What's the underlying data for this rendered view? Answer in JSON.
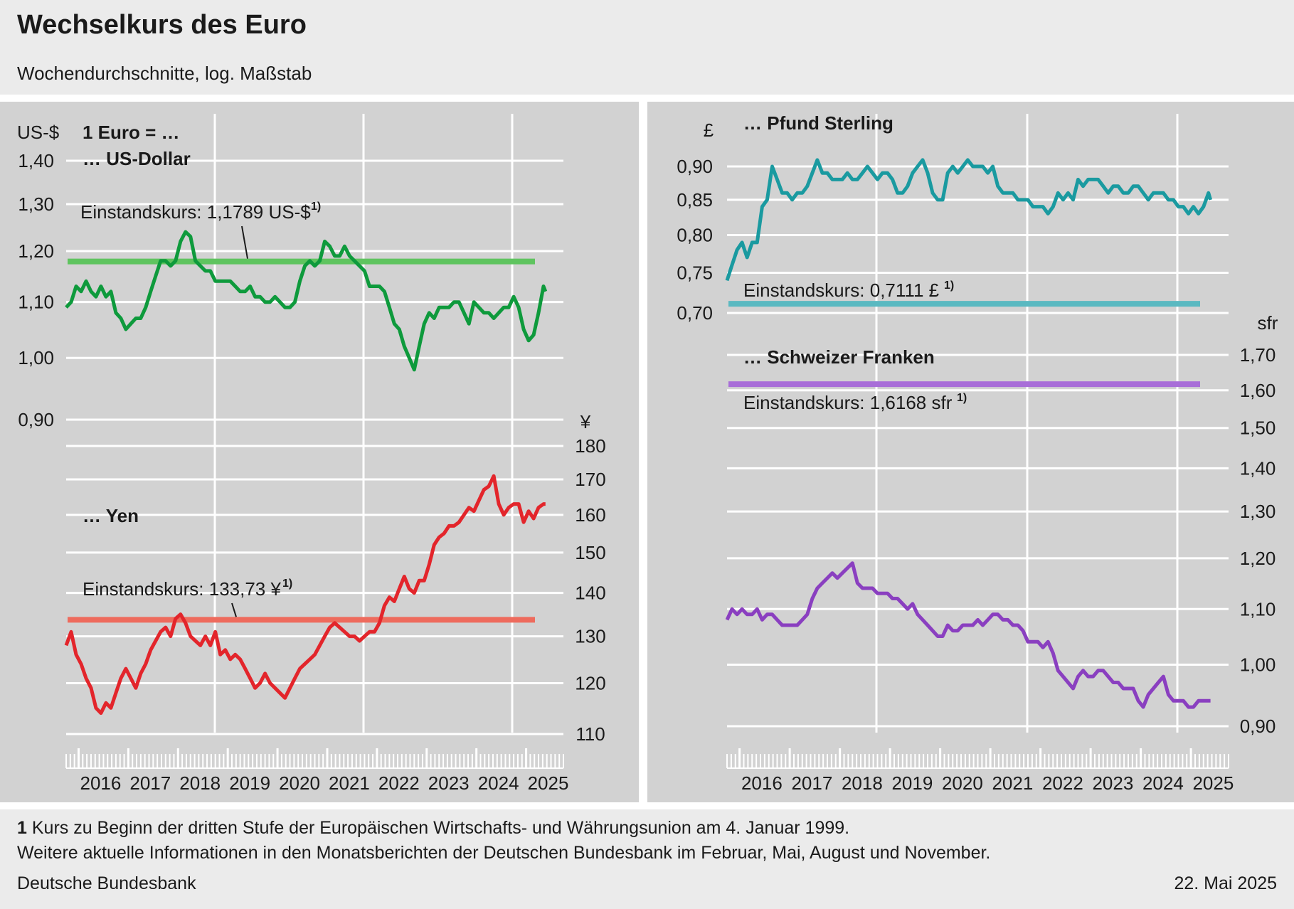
{
  "title": "Wechselkurs des Euro",
  "subtitle": "Wochendurchschnitte, log. Maßstab",
  "footnote_num": "1",
  "footnote_text": "Kurs zu Beginn der dritten Stufe der Europäischen Wirtschafts- und Währungsunion am 4. Januar 1999.",
  "footnote_text2": "Weitere aktuelle Informationen in den Monatsberichten der Deutschen Bundesbank im Februar, Mai, August und November.",
  "source": "Deutsche Bundesbank",
  "date": "22. Mai 2025",
  "header_label": "1 Euro = …",
  "years": [
    "2016",
    "2017",
    "2018",
    "2019",
    "2020",
    "2021",
    "2022",
    "2023",
    "2024",
    "2025"
  ],
  "chart_data": [
    {
      "type": "line",
      "name": "… US-Dollar",
      "unit": "US-$",
      "scale": "log",
      "yticks": [
        0.9,
        1.0,
        1.1,
        1.2,
        1.3,
        1.4
      ],
      "ytick_labels": [
        "0,90",
        "1,00",
        "1,10",
        "1,20",
        "1,30",
        "1,40"
      ],
      "color": "#0e9a3c",
      "baseline": {
        "value": 1.1789,
        "label": "Einstandskurs: 1,1789 US-$",
        "sup": "1)",
        "color": "#5fc45f"
      },
      "x": [
        2015.75,
        2015.85,
        2015.95,
        2016.05,
        2016.15,
        2016.25,
        2016.35,
        2016.45,
        2016.55,
        2016.65,
        2016.75,
        2016.85,
        2016.95,
        2017.05,
        2017.15,
        2017.25,
        2017.35,
        2017.45,
        2017.55,
        2017.65,
        2017.75,
        2017.85,
        2017.95,
        2018.05,
        2018.15,
        2018.25,
        2018.35,
        2018.45,
        2018.55,
        2018.65,
        2018.75,
        2018.85,
        2018.95,
        2019.05,
        2019.15,
        2019.25,
        2019.35,
        2019.45,
        2019.55,
        2019.65,
        2019.75,
        2019.85,
        2019.95,
        2020.05,
        2020.15,
        2020.25,
        2020.35,
        2020.45,
        2020.55,
        2020.65,
        2020.75,
        2020.85,
        2020.95,
        2021.05,
        2021.15,
        2021.25,
        2021.35,
        2021.45,
        2021.55,
        2021.65,
        2021.75,
        2021.85,
        2021.95,
        2022.05,
        2022.15,
        2022.25,
        2022.35,
        2022.45,
        2022.55,
        2022.65,
        2022.75,
        2022.85,
        2022.95,
        2023.05,
        2023.15,
        2023.25,
        2023.35,
        2023.45,
        2023.55,
        2023.65,
        2023.75,
        2023.85,
        2023.95,
        2024.05,
        2024.15,
        2024.25,
        2024.35,
        2024.45,
        2024.55,
        2024.65,
        2024.75,
        2024.85,
        2024.95,
        2025.05,
        2025.15,
        2025.25,
        2025.35,
        2025.39
      ],
      "values": [
        1.09,
        1.1,
        1.13,
        1.12,
        1.14,
        1.12,
        1.11,
        1.13,
        1.11,
        1.12,
        1.08,
        1.07,
        1.05,
        1.06,
        1.07,
        1.07,
        1.09,
        1.12,
        1.15,
        1.18,
        1.18,
        1.17,
        1.18,
        1.22,
        1.24,
        1.23,
        1.18,
        1.17,
        1.16,
        1.16,
        1.14,
        1.14,
        1.14,
        1.14,
        1.13,
        1.12,
        1.12,
        1.13,
        1.11,
        1.11,
        1.1,
        1.1,
        1.11,
        1.1,
        1.09,
        1.09,
        1.1,
        1.14,
        1.17,
        1.18,
        1.17,
        1.18,
        1.22,
        1.21,
        1.19,
        1.19,
        1.21,
        1.19,
        1.18,
        1.17,
        1.16,
        1.13,
        1.13,
        1.13,
        1.12,
        1.09,
        1.06,
        1.05,
        1.02,
        1.0,
        0.98,
        1.02,
        1.06,
        1.08,
        1.07,
        1.09,
        1.09,
        1.09,
        1.1,
        1.1,
        1.08,
        1.06,
        1.1,
        1.09,
        1.08,
        1.08,
        1.07,
        1.08,
        1.09,
        1.09,
        1.11,
        1.09,
        1.05,
        1.03,
        1.04,
        1.08,
        1.13,
        1.12
      ]
    },
    {
      "type": "line",
      "name": "… Yen",
      "unit": "¥",
      "scale": "log",
      "yticks": [
        110,
        120,
        130,
        140,
        150,
        160,
        170,
        180
      ],
      "ytick_labels": [
        "110",
        "120",
        "130",
        "140",
        "150",
        "160",
        "170",
        "180"
      ],
      "color": "#e3252b",
      "baseline": {
        "value": 133.73,
        "label": "Einstandskurs: 133,73 ¥",
        "sup": "1)",
        "color": "#ee6b5d"
      },
      "x": [
        2015.75,
        2015.85,
        2015.95,
        2016.05,
        2016.15,
        2016.25,
        2016.35,
        2016.45,
        2016.55,
        2016.65,
        2016.75,
        2016.85,
        2016.95,
        2017.05,
        2017.15,
        2017.25,
        2017.35,
        2017.45,
        2017.55,
        2017.65,
        2017.75,
        2017.85,
        2017.95,
        2018.05,
        2018.15,
        2018.25,
        2018.35,
        2018.45,
        2018.55,
        2018.65,
        2018.75,
        2018.85,
        2018.95,
        2019.05,
        2019.15,
        2019.25,
        2019.35,
        2019.45,
        2019.55,
        2019.65,
        2019.75,
        2019.85,
        2019.95,
        2020.05,
        2020.15,
        2020.25,
        2020.35,
        2020.45,
        2020.55,
        2020.65,
        2020.75,
        2020.85,
        2020.95,
        2021.05,
        2021.15,
        2021.25,
        2021.35,
        2021.45,
        2021.55,
        2021.65,
        2021.75,
        2021.85,
        2021.95,
        2022.05,
        2022.15,
        2022.25,
        2022.35,
        2022.45,
        2022.55,
        2022.65,
        2022.75,
        2022.85,
        2022.95,
        2023.05,
        2023.15,
        2023.25,
        2023.35,
        2023.45,
        2023.55,
        2023.65,
        2023.75,
        2023.85,
        2023.95,
        2024.05,
        2024.15,
        2024.25,
        2024.35,
        2024.45,
        2024.55,
        2024.65,
        2024.75,
        2024.85,
        2024.95,
        2025.05,
        2025.15,
        2025.25,
        2025.35,
        2025.39
      ],
      "values": [
        128,
        131,
        126,
        124,
        121,
        119,
        115,
        114,
        116,
        115,
        118,
        121,
        123,
        121,
        119,
        122,
        124,
        127,
        129,
        131,
        132,
        130,
        134,
        135,
        133,
        130,
        129,
        128,
        130,
        128,
        131,
        126,
        127,
        125,
        126,
        125,
        123,
        121,
        119,
        120,
        122,
        120,
        119,
        118,
        117,
        119,
        121,
        123,
        124,
        125,
        126,
        128,
        130,
        132,
        133,
        132,
        131,
        130,
        130,
        129,
        130,
        131,
        131,
        133,
        137,
        139,
        138,
        141,
        144,
        141,
        140,
        143,
        143,
        147,
        152,
        154,
        155,
        157,
        157,
        158,
        160,
        162,
        161,
        164,
        167,
        168,
        171,
        163,
        160,
        162,
        163,
        163,
        158,
        161,
        159,
        162,
        163,
        163
      ]
    },
    {
      "type": "line",
      "name": "… Pfund Sterling",
      "unit": "£",
      "scale": "log",
      "yticks": [
        0.7,
        0.75,
        0.8,
        0.85,
        0.9
      ],
      "ytick_labels": [
        "0,70",
        "0,75",
        "0,80",
        "0,85",
        "0,90"
      ],
      "color": "#1a9aa0",
      "baseline": {
        "value": 0.7111,
        "label": "Einstandskurs: 0,7111 £",
        "sup": "1)",
        "color": "#5ab9c1"
      },
      "x": [
        2015.75,
        2015.85,
        2015.95,
        2016.05,
        2016.15,
        2016.25,
        2016.35,
        2016.45,
        2016.55,
        2016.65,
        2016.75,
        2016.85,
        2016.95,
        2017.05,
        2017.15,
        2017.25,
        2017.35,
        2017.45,
        2017.55,
        2017.65,
        2017.75,
        2017.85,
        2017.95,
        2018.05,
        2018.15,
        2018.25,
        2018.35,
        2018.45,
        2018.55,
        2018.65,
        2018.75,
        2018.85,
        2018.95,
        2019.05,
        2019.15,
        2019.25,
        2019.35,
        2019.45,
        2019.55,
        2019.65,
        2019.75,
        2019.85,
        2019.95,
        2020.05,
        2020.15,
        2020.25,
        2020.35,
        2020.45,
        2020.55,
        2020.65,
        2020.75,
        2020.85,
        2020.95,
        2021.05,
        2021.15,
        2021.25,
        2021.35,
        2021.45,
        2021.55,
        2021.65,
        2021.75,
        2021.85,
        2021.95,
        2022.05,
        2022.15,
        2022.25,
        2022.35,
        2022.45,
        2022.55,
        2022.65,
        2022.75,
        2022.85,
        2022.95,
        2023.05,
        2023.15,
        2023.25,
        2023.35,
        2023.45,
        2023.55,
        2023.65,
        2023.75,
        2023.85,
        2023.95,
        2024.05,
        2024.15,
        2024.25,
        2024.35,
        2024.45,
        2024.55,
        2024.65,
        2024.75,
        2024.85,
        2024.95,
        2025.05,
        2025.15,
        2025.25,
        2025.35,
        2025.39
      ],
      "values": [
        0.74,
        0.76,
        0.78,
        0.79,
        0.77,
        0.79,
        0.79,
        0.84,
        0.85,
        0.9,
        0.88,
        0.86,
        0.86,
        0.85,
        0.86,
        0.86,
        0.87,
        0.89,
        0.91,
        0.89,
        0.89,
        0.88,
        0.88,
        0.88,
        0.89,
        0.88,
        0.88,
        0.89,
        0.9,
        0.89,
        0.88,
        0.89,
        0.89,
        0.88,
        0.86,
        0.86,
        0.87,
        0.89,
        0.9,
        0.91,
        0.89,
        0.86,
        0.85,
        0.85,
        0.89,
        0.9,
        0.89,
        0.9,
        0.91,
        0.9,
        0.9,
        0.9,
        0.89,
        0.9,
        0.87,
        0.86,
        0.86,
        0.86,
        0.85,
        0.85,
        0.85,
        0.84,
        0.84,
        0.84,
        0.83,
        0.84,
        0.86,
        0.85,
        0.86,
        0.85,
        0.88,
        0.87,
        0.88,
        0.88,
        0.88,
        0.87,
        0.86,
        0.87,
        0.87,
        0.86,
        0.86,
        0.87,
        0.87,
        0.86,
        0.85,
        0.86,
        0.86,
        0.86,
        0.85,
        0.85,
        0.84,
        0.84,
        0.83,
        0.84,
        0.83,
        0.84,
        0.86,
        0.85
      ]
    },
    {
      "type": "line",
      "name": "… Schweizer Franken",
      "unit": "sfr",
      "scale": "log",
      "yticks": [
        0.9,
        1.0,
        1.1,
        1.2,
        1.3,
        1.4,
        1.5,
        1.6,
        1.7
      ],
      "ytick_labels": [
        "0,90",
        "1,00",
        "1,10",
        "1,20",
        "1,30",
        "1,40",
        "1,50",
        "1,60",
        "1,70"
      ],
      "color": "#8a3fc0",
      "baseline": {
        "value": 1.6168,
        "label": "Einstandskurs: 1,6168 sfr",
        "sup": "1)",
        "color": "#a86ed8"
      },
      "x": [
        2015.75,
        2015.85,
        2015.95,
        2016.05,
        2016.15,
        2016.25,
        2016.35,
        2016.45,
        2016.55,
        2016.65,
        2016.75,
        2016.85,
        2016.95,
        2017.05,
        2017.15,
        2017.25,
        2017.35,
        2017.45,
        2017.55,
        2017.65,
        2017.75,
        2017.85,
        2017.95,
        2018.05,
        2018.15,
        2018.25,
        2018.35,
        2018.45,
        2018.55,
        2018.65,
        2018.75,
        2018.85,
        2018.95,
        2019.05,
        2019.15,
        2019.25,
        2019.35,
        2019.45,
        2019.55,
        2019.65,
        2019.75,
        2019.85,
        2019.95,
        2020.05,
        2020.15,
        2020.25,
        2020.35,
        2020.45,
        2020.55,
        2020.65,
        2020.75,
        2020.85,
        2020.95,
        2021.05,
        2021.15,
        2021.25,
        2021.35,
        2021.45,
        2021.55,
        2021.65,
        2021.75,
        2021.85,
        2021.95,
        2022.05,
        2022.15,
        2022.25,
        2022.35,
        2022.45,
        2022.55,
        2022.65,
        2022.75,
        2022.85,
        2022.95,
        2023.05,
        2023.15,
        2023.25,
        2023.35,
        2023.45,
        2023.55,
        2023.65,
        2023.75,
        2023.85,
        2023.95,
        2024.05,
        2024.15,
        2024.25,
        2024.35,
        2024.45,
        2024.55,
        2024.65,
        2024.75,
        2024.85,
        2024.95,
        2025.05,
        2025.15,
        2025.25,
        2025.35,
        2025.39
      ],
      "values": [
        1.08,
        1.1,
        1.09,
        1.1,
        1.09,
        1.09,
        1.1,
        1.08,
        1.09,
        1.09,
        1.08,
        1.07,
        1.07,
        1.07,
        1.07,
        1.08,
        1.09,
        1.12,
        1.14,
        1.15,
        1.16,
        1.17,
        1.16,
        1.17,
        1.18,
        1.19,
        1.15,
        1.14,
        1.14,
        1.14,
        1.13,
        1.13,
        1.13,
        1.12,
        1.12,
        1.11,
        1.1,
        1.11,
        1.09,
        1.08,
        1.07,
        1.06,
        1.05,
        1.05,
        1.07,
        1.06,
        1.06,
        1.07,
        1.07,
        1.07,
        1.08,
        1.07,
        1.08,
        1.09,
        1.09,
        1.08,
        1.08,
        1.07,
        1.07,
        1.06,
        1.04,
        1.04,
        1.04,
        1.03,
        1.04,
        1.02,
        0.99,
        0.98,
        0.97,
        0.96,
        0.98,
        0.99,
        0.98,
        0.98,
        0.99,
        0.99,
        0.98,
        0.97,
        0.97,
        0.96,
        0.96,
        0.96,
        0.94,
        0.93,
        0.95,
        0.96,
        0.97,
        0.98,
        0.95,
        0.94,
        0.94,
        0.94,
        0.93,
        0.93,
        0.94,
        0.94,
        0.94,
        0.94
      ]
    }
  ]
}
